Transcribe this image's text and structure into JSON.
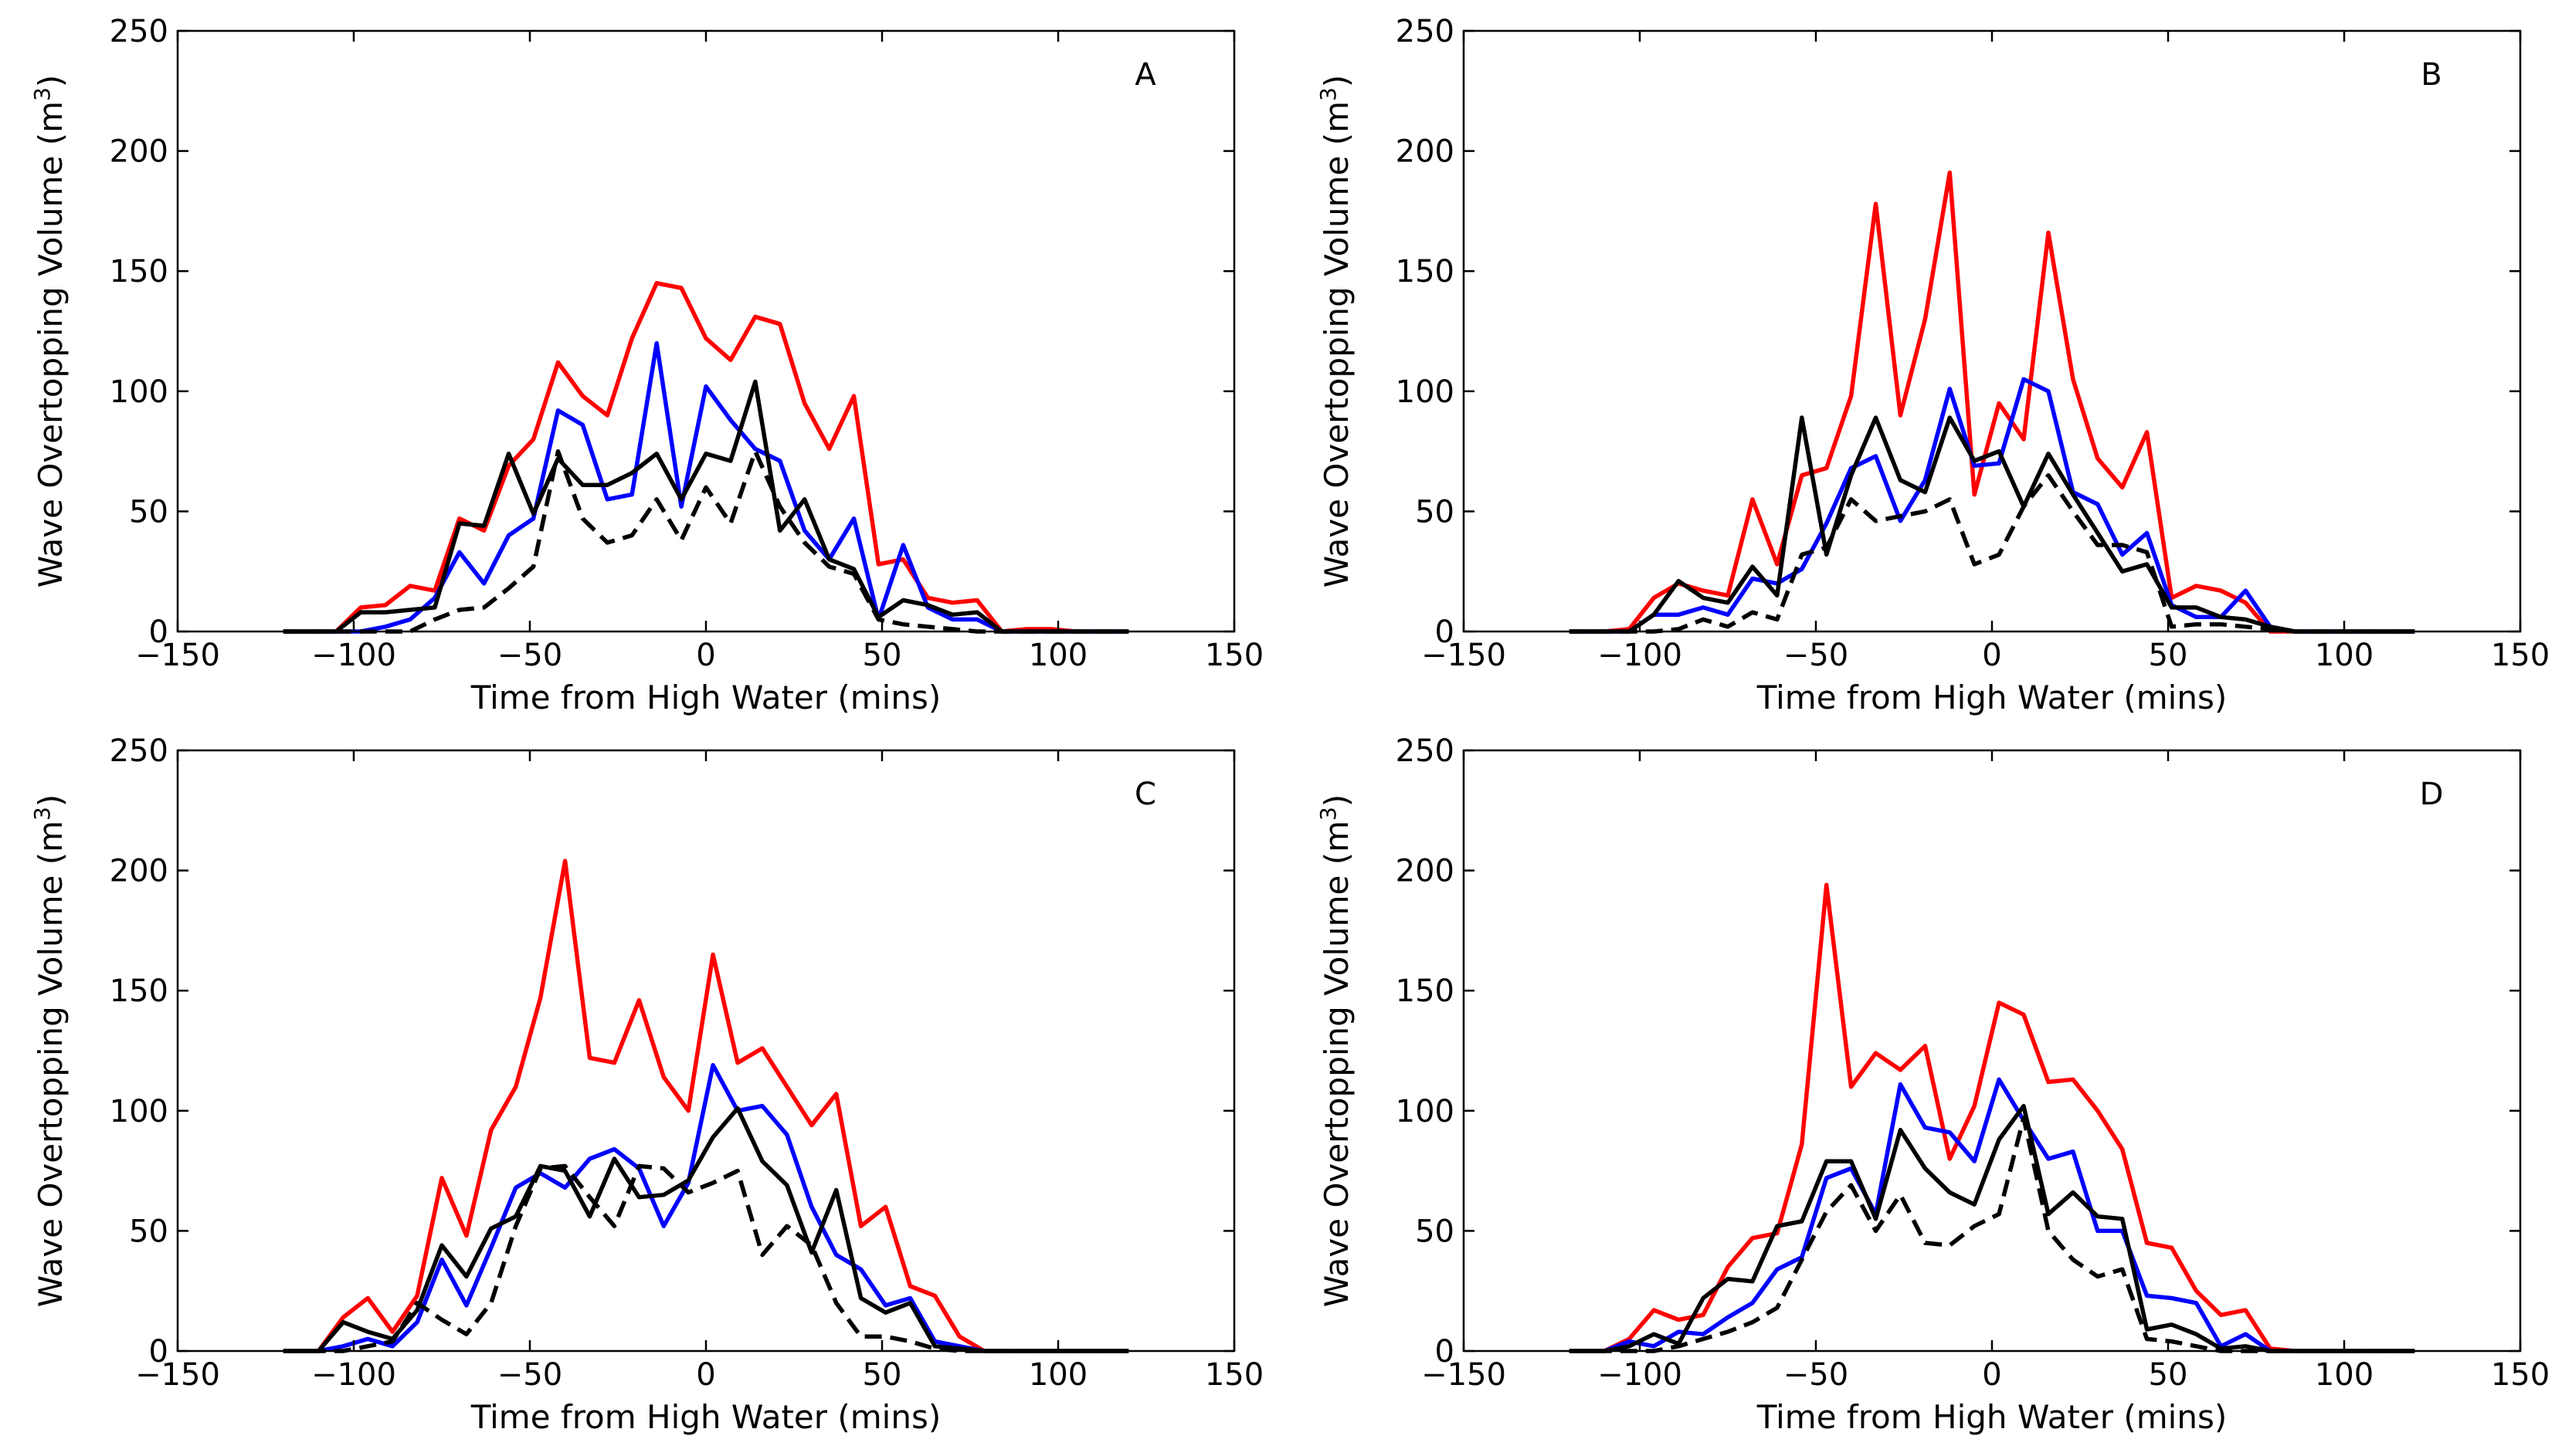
{
  "figure": {
    "xlabel": "Time from High Water (mins)",
    "ylabel_main": "Wave Overtopping Volume (m",
    "ylabel_sup": "3",
    "ylabel_close": ")",
    "series_colors": {
      "red": "#ff0000",
      "blue": "#0000ff",
      "black_solid": "#000000",
      "black_dashed": "#000000"
    }
  },
  "chart_data": [
    {
      "type": "line",
      "panel": "A",
      "xlim": [
        -150,
        150
      ],
      "ylim": [
        0,
        250
      ],
      "xticks": [
        "−150",
        "−100",
        "−50",
        "0",
        "50",
        "100",
        "150"
      ],
      "yticks": [
        "0",
        "50",
        "100",
        "150",
        "200",
        "250"
      ],
      "xlabel": "Time from High Water (mins)",
      "ylabel": "Wave Overtopping Volume (m3)",
      "x": [
        -120,
        -105,
        -98,
        -91,
        -84,
        -77,
        -70,
        -63,
        -56,
        -49,
        -42,
        -35,
        -28,
        -21,
        -14,
        -7,
        0,
        7,
        14,
        21,
        28,
        35,
        42,
        49,
        56,
        63,
        70,
        77,
        84,
        91,
        98,
        105,
        120
      ],
      "series": [
        {
          "name": "red",
          "style": "solid",
          "color": "#ff0000",
          "values": [
            0,
            0,
            10,
            11,
            19,
            17,
            47,
            42,
            69,
            80,
            112,
            98,
            90,
            122,
            145,
            143,
            122,
            113,
            131,
            128,
            95,
            76,
            98,
            28,
            30,
            14,
            12,
            13,
            0,
            1,
            1,
            0,
            0
          ]
        },
        {
          "name": "blue",
          "style": "solid",
          "color": "#0000ff",
          "values": [
            0,
            0,
            0,
            2,
            5,
            14,
            33,
            20,
            40,
            47,
            92,
            86,
            55,
            57,
            120,
            52,
            102,
            88,
            76,
            71,
            42,
            30,
            47,
            5,
            36,
            10,
            5,
            5,
            0,
            0,
            0,
            0,
            0
          ]
        },
        {
          "name": "black",
          "style": "solid",
          "color": "#000000",
          "values": [
            0,
            0,
            8,
            8,
            9,
            10,
            45,
            44,
            74,
            49,
            72,
            61,
            61,
            66,
            74,
            55,
            74,
            71,
            104,
            42,
            55,
            30,
            26,
            6,
            13,
            11,
            7,
            8,
            0,
            0,
            0,
            0,
            0
          ]
        },
        {
          "name": "black-dashed",
          "style": "dashed",
          "color": "#000000",
          "values": [
            0,
            0,
            0,
            0,
            0,
            5,
            9,
            10,
            18,
            27,
            75,
            47,
            37,
            40,
            55,
            38,
            60,
            45,
            75,
            52,
            37,
            27,
            24,
            5,
            3,
            2,
            1,
            0,
            0,
            0,
            0,
            0,
            0
          ]
        }
      ]
    },
    {
      "type": "line",
      "panel": "B",
      "xlim": [
        -150,
        150
      ],
      "ylim": [
        0,
        250
      ],
      "xticks": [
        "−150",
        "−100",
        "−50",
        "0",
        "50",
        "100",
        "150"
      ],
      "yticks": [
        "0",
        "50",
        "100",
        "150",
        "200",
        "250"
      ],
      "xlabel": "Time from High Water (mins)",
      "ylabel": "Wave Overtopping Volume (m3)",
      "x": [
        -120,
        -110,
        -103,
        -96,
        -89,
        -82,
        -75,
        -68,
        -61,
        -54,
        -47,
        -40,
        -33,
        -26,
        -19,
        -12,
        -5,
        2,
        9,
        16,
        23,
        30,
        37,
        44,
        51,
        58,
        65,
        72,
        79,
        86,
        93,
        100,
        120
      ],
      "series": [
        {
          "name": "red",
          "style": "solid",
          "color": "#ff0000",
          "values": [
            0,
            0,
            1,
            14,
            20,
            17,
            15,
            55,
            28,
            65,
            68,
            98,
            178,
            90,
            130,
            191,
            57,
            95,
            80,
            166,
            105,
            72,
            60,
            83,
            14,
            19,
            17,
            12,
            0,
            0,
            0,
            0,
            0
          ]
        },
        {
          "name": "blue",
          "style": "solid",
          "color": "#0000ff",
          "values": [
            0,
            0,
            0,
            7,
            7,
            10,
            7,
            22,
            20,
            26,
            45,
            68,
            73,
            46,
            63,
            101,
            69,
            70,
            105,
            100,
            58,
            53,
            32,
            41,
            11,
            6,
            6,
            17,
            2,
            0,
            0,
            0,
            0
          ]
        },
        {
          "name": "black",
          "style": "solid",
          "color": "#000000",
          "values": [
            0,
            0,
            0,
            7,
            21,
            14,
            12,
            27,
            15,
            89,
            32,
            65,
            89,
            63,
            58,
            89,
            71,
            75,
            52,
            74,
            57,
            41,
            25,
            28,
            10,
            10,
            6,
            5,
            2,
            0,
            0,
            0,
            0
          ]
        },
        {
          "name": "black-dashed",
          "style": "dashed",
          "color": "#000000",
          "values": [
            0,
            0,
            0,
            0,
            1,
            5,
            2,
            8,
            5,
            32,
            35,
            55,
            46,
            48,
            50,
            55,
            28,
            32,
            52,
            65,
            50,
            36,
            36,
            33,
            2,
            3,
            3,
            2,
            1,
            0,
            0,
            0,
            0
          ]
        }
      ]
    },
    {
      "type": "line",
      "panel": "C",
      "xlim": [
        -150,
        150
      ],
      "ylim": [
        0,
        250
      ],
      "xticks": [
        "−150",
        "−100",
        "−50",
        "0",
        "50",
        "100",
        "150"
      ],
      "yticks": [
        "0",
        "50",
        "100",
        "150",
        "200",
        "250"
      ],
      "xlabel": "Time from High Water (mins)",
      "ylabel": "Wave Overtopping Volume (m3)",
      "x": [
        -120,
        -110,
        -103,
        -96,
        -89,
        -82,
        -75,
        -68,
        -61,
        -54,
        -47,
        -40,
        -33,
        -26,
        -19,
        -12,
        -5,
        2,
        9,
        16,
        23,
        30,
        37,
        44,
        51,
        58,
        65,
        72,
        79,
        86,
        93,
        100,
        120
      ],
      "series": [
        {
          "name": "red",
          "style": "solid",
          "color": "#ff0000",
          "values": [
            0,
            0,
            14,
            22,
            8,
            23,
            72,
            48,
            92,
            110,
            147,
            204,
            122,
            120,
            146,
            114,
            100,
            165,
            120,
            126,
            110,
            94,
            107,
            52,
            60,
            27,
            23,
            6,
            0,
            0,
            0,
            0,
            0
          ]
        },
        {
          "name": "blue",
          "style": "solid",
          "color": "#0000ff",
          "values": [
            0,
            0,
            2,
            5,
            2,
            12,
            38,
            19,
            43,
            68,
            74,
            68,
            80,
            84,
            76,
            52,
            70,
            119,
            100,
            102,
            90,
            60,
            40,
            34,
            19,
            22,
            4,
            2,
            0,
            0,
            0,
            0,
            0
          ]
        },
        {
          "name": "black",
          "style": "solid",
          "color": "#000000",
          "values": [
            0,
            0,
            12,
            8,
            5,
            17,
            44,
            31,
            51,
            56,
            77,
            75,
            56,
            80,
            64,
            65,
            71,
            89,
            101,
            79,
            69,
            41,
            67,
            22,
            16,
            20,
            2,
            1,
            0,
            0,
            0,
            0,
            0
          ]
        },
        {
          "name": "black-dashed",
          "style": "dashed",
          "color": "#000000",
          "values": [
            0,
            0,
            0,
            2,
            4,
            20,
            13,
            7,
            20,
            52,
            76,
            77,
            64,
            52,
            77,
            76,
            66,
            70,
            75,
            40,
            52,
            44,
            20,
            6,
            6,
            4,
            1,
            0,
            0,
            0,
            0,
            0,
            0
          ]
        }
      ]
    },
    {
      "type": "line",
      "panel": "D",
      "xlim": [
        -150,
        150
      ],
      "ylim": [
        0,
        250
      ],
      "xticks": [
        "−150",
        "−100",
        "−50",
        "0",
        "50",
        "100",
        "150"
      ],
      "yticks": [
        "0",
        "50",
        "100",
        "150",
        "200",
        "250"
      ],
      "xlabel": "Time from High Water (mins)",
      "ylabel": "Wave Overtopping Volume (m3)",
      "x": [
        -120,
        -110,
        -103,
        -96,
        -89,
        -82,
        -75,
        -68,
        -61,
        -54,
        -47,
        -40,
        -33,
        -26,
        -19,
        -12,
        -5,
        2,
        9,
        16,
        23,
        30,
        37,
        44,
        51,
        58,
        65,
        72,
        79,
        86,
        93,
        100,
        120
      ],
      "series": [
        {
          "name": "red",
          "style": "solid",
          "color": "#ff0000",
          "values": [
            0,
            0,
            5,
            17,
            13,
            15,
            35,
            47,
            49,
            86,
            194,
            110,
            124,
            117,
            127,
            80,
            102,
            145,
            140,
            112,
            113,
            100,
            84,
            45,
            43,
            25,
            15,
            17,
            1,
            0,
            0,
            0,
            0
          ]
        },
        {
          "name": "blue",
          "style": "solid",
          "color": "#0000ff",
          "values": [
            0,
            0,
            4,
            2,
            8,
            7,
            14,
            20,
            34,
            39,
            72,
            76,
            57,
            111,
            93,
            91,
            79,
            113,
            96,
            80,
            83,
            50,
            50,
            23,
            22,
            20,
            2,
            7,
            0,
            0,
            0,
            0,
            0
          ]
        },
        {
          "name": "black",
          "style": "solid",
          "color": "#000000",
          "values": [
            0,
            0,
            2,
            7,
            3,
            22,
            30,
            29,
            52,
            54,
            79,
            79,
            55,
            92,
            76,
            66,
            61,
            88,
            102,
            57,
            66,
            56,
            55,
            9,
            11,
            7,
            1,
            2,
            0,
            0,
            0,
            0,
            0
          ]
        },
        {
          "name": "black-dashed",
          "style": "dashed",
          "color": "#000000",
          "values": [
            0,
            0,
            0,
            0,
            2,
            5,
            8,
            12,
            18,
            38,
            58,
            69,
            50,
            65,
            45,
            44,
            52,
            57,
            97,
            50,
            38,
            31,
            34,
            5,
            4,
            2,
            0,
            0,
            0,
            0,
            0,
            0,
            0
          ]
        }
      ]
    }
  ]
}
